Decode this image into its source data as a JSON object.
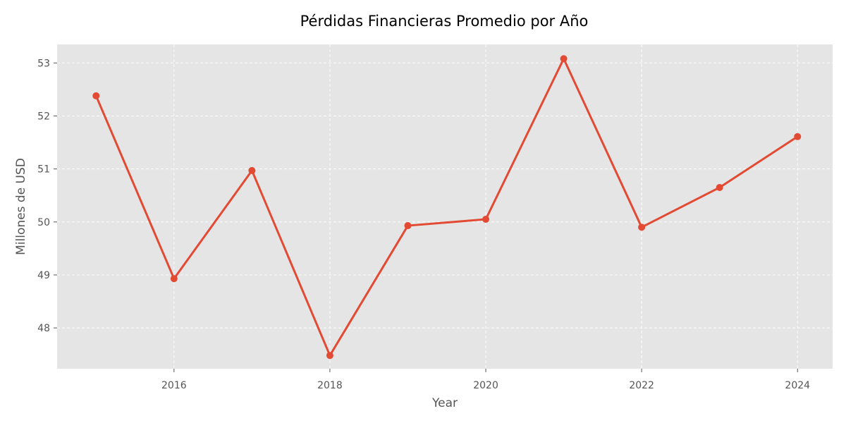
{
  "chart_data": {
    "type": "line",
    "title": "Pérdidas Financieras Promedio por Año",
    "xlabel": "Year",
    "ylabel": "Millones de USD",
    "x": [
      2015,
      2016,
      2017,
      2018,
      2019,
      2020,
      2021,
      2022,
      2023,
      2024
    ],
    "series": [
      {
        "values": [
          52.38,
          48.93,
          50.97,
          47.48,
          49.93,
          50.05,
          53.08,
          49.9,
          50.65,
          51.61
        ]
      }
    ],
    "xticks": [
      2016,
      2018,
      2020,
      2022,
      2024
    ],
    "yticks": [
      48,
      49,
      50,
      51,
      52,
      53
    ],
    "xlim": [
      2014.5,
      2024.45
    ],
    "ylim": [
      47.23,
      53.35
    ],
    "grid": true,
    "colors": {
      "line": "#E24A33",
      "plot_background": "#E5E5E5",
      "grid": "#FFFFFF"
    }
  }
}
